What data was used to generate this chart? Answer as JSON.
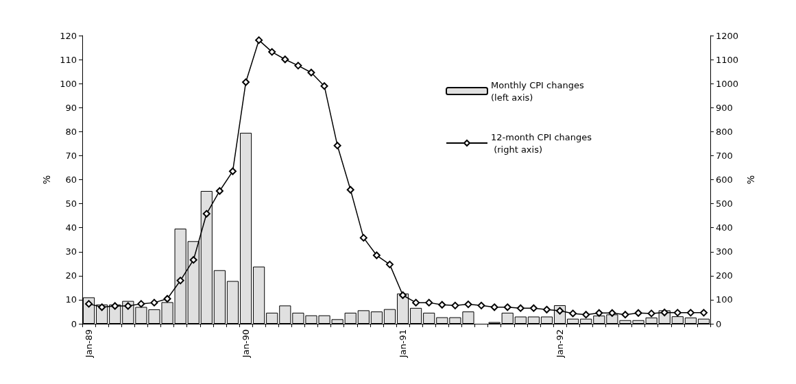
{
  "chart_data": {
    "type": "bar",
    "ylabel": "%",
    "y2label": "%",
    "categories": [
      "Jan-89",
      null,
      null,
      null,
      null,
      null,
      null,
      null,
      null,
      null,
      null,
      null,
      "Jan-90",
      null,
      null,
      null,
      null,
      null,
      null,
      null,
      null,
      null,
      null,
      null,
      "Jan-91",
      null,
      null,
      null,
      null,
      null,
      null,
      null,
      null,
      null,
      null,
      null,
      "Jan-92",
      null,
      null,
      null,
      null,
      null,
      null,
      null,
      null,
      null,
      null,
      null
    ],
    "series": [
      {
        "name": "Monthly CPI changes (left axis)",
        "color": "#e0e0e0",
        "values": [
          11,
          8,
          8,
          9.5,
          7,
          6,
          9,
          39.6,
          34.4,
          55.3,
          22.3,
          17.8,
          79.5,
          23.8,
          4.6,
          7.6,
          4.6,
          3.5,
          3.5,
          1.9,
          4.6,
          5.6,
          5.1,
          6.1,
          12.6,
          6.6,
          4.6,
          2.7,
          2.7,
          5.1,
          null,
          0.7,
          4.6,
          3,
          3,
          3,
          7.7,
          2.1,
          2.1,
          3.4,
          3.9,
          1.5,
          1.5,
          2.6,
          5.6,
          3.1,
          2.6,
          2.1
        ]
      },
      {
        "name": "12-month CPI changes (right axis)",
        "type": "line",
        "axis": "y2",
        "color": "#000000",
        "marker": "diamond",
        "values": [
          83,
          69,
          74,
          74,
          83,
          88,
          104,
          180,
          266,
          458,
          553,
          635,
          1006,
          1181,
          1132,
          1101,
          1075,
          1046,
          990,
          742,
          558,
          358,
          285,
          247,
          119,
          88,
          88,
          79,
          76,
          81,
          76,
          69,
          69,
          65,
          65,
          59,
          54,
          43,
          38,
          45,
          45,
          38,
          45,
          43,
          47,
          46,
          46,
          46
        ]
      }
    ],
    "ylim": [
      0,
      120
    ],
    "yticks": [
      0,
      10,
      20,
      30,
      40,
      50,
      60,
      70,
      80,
      90,
      100,
      110,
      120
    ],
    "y2lim": [
      0,
      1200
    ],
    "y2ticks": [
      0,
      100,
      200,
      300,
      400,
      500,
      600,
      700,
      800,
      900,
      1000,
      1100,
      1200
    ],
    "legend": "top right",
    "grid": false
  }
}
